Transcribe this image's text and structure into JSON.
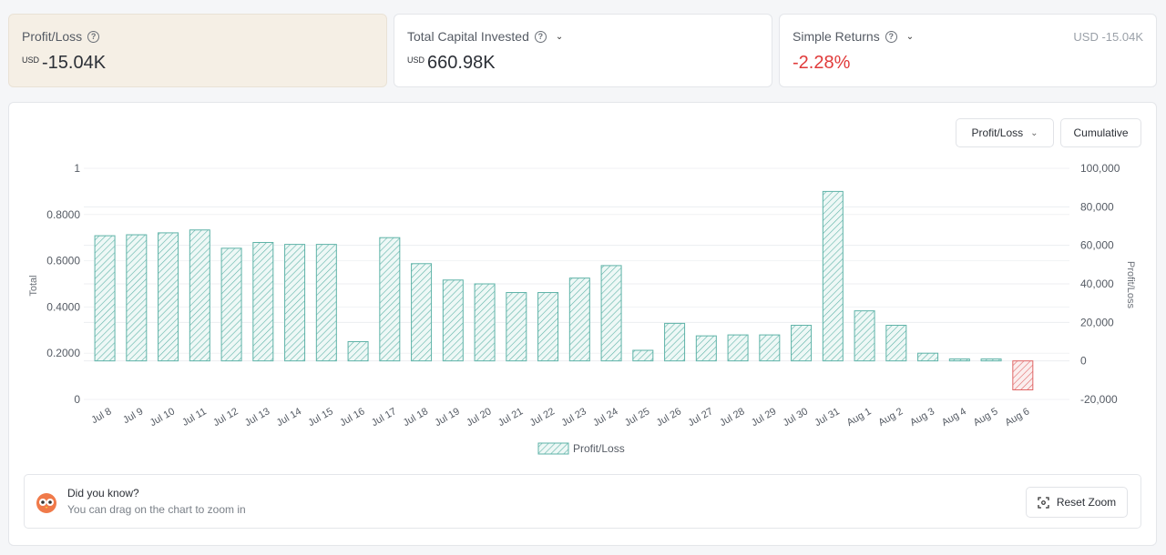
{
  "stats": [
    {
      "title": "Profit/Loss",
      "unit": "USD",
      "value": "-15.04K",
      "has_dropdown": false
    },
    {
      "title": "Total Capital Invested",
      "unit": "USD",
      "value": "660.98K",
      "has_dropdown": true
    },
    {
      "title": "Simple Returns",
      "unit": "",
      "value": "-2.28%",
      "has_dropdown": true,
      "side_note": "USD -15.04K"
    }
  ],
  "controls": {
    "metric_select": "Profit/Loss",
    "mode_button": "Cumulative",
    "reset_zoom": "Reset Zoom"
  },
  "tip": {
    "title": "Did you know?",
    "text": "You can drag on the chart to zoom in"
  },
  "colors": {
    "positive_bar": "#5fb3a8",
    "negative_bar": "#e06666",
    "negative_text": "#e03a3a",
    "highlight_card": "#f5efe5"
  },
  "chart_data": {
    "type": "bar",
    "left_axis": {
      "label": "Total",
      "ticks": [
        "0",
        "0.2000",
        "0.4000",
        "0.6000",
        "0.8000",
        "1"
      ]
    },
    "right_axis": {
      "label": "Profit/Loss",
      "ticks": [
        "-20,000",
        "0",
        "20,000",
        "40,000",
        "60,000",
        "80,000",
        "100,000"
      ],
      "ylim": [
        -20000,
        100000
      ]
    },
    "categories": [
      "Jul 8",
      "Jul 9",
      "Jul 10",
      "Jul 11",
      "Jul 12",
      "Jul 13",
      "Jul 14",
      "Jul 15",
      "Jul 16",
      "Jul 17",
      "Jul 18",
      "Jul 19",
      "Jul 20",
      "Jul 21",
      "Jul 22",
      "Jul 23",
      "Jul 24",
      "Jul 25",
      "Jul 26",
      "Jul 27",
      "Jul 28",
      "Jul 29",
      "Jul 30",
      "Jul 31",
      "Aug 1",
      "Aug 2",
      "Aug 3",
      "Aug 4",
      "Aug 5",
      "Aug 6"
    ],
    "series": [
      {
        "name": "Profit/Loss",
        "values": [
          65000,
          65500,
          66500,
          68000,
          58500,
          61500,
          60500,
          60500,
          10000,
          64000,
          50500,
          42000,
          40000,
          35500,
          35500,
          43000,
          49500,
          5500,
          19500,
          13000,
          13500,
          13500,
          18500,
          88000,
          26000,
          18500,
          4000,
          1000,
          1000,
          -15040
        ]
      }
    ],
    "grid": true,
    "legend": "bottom"
  }
}
